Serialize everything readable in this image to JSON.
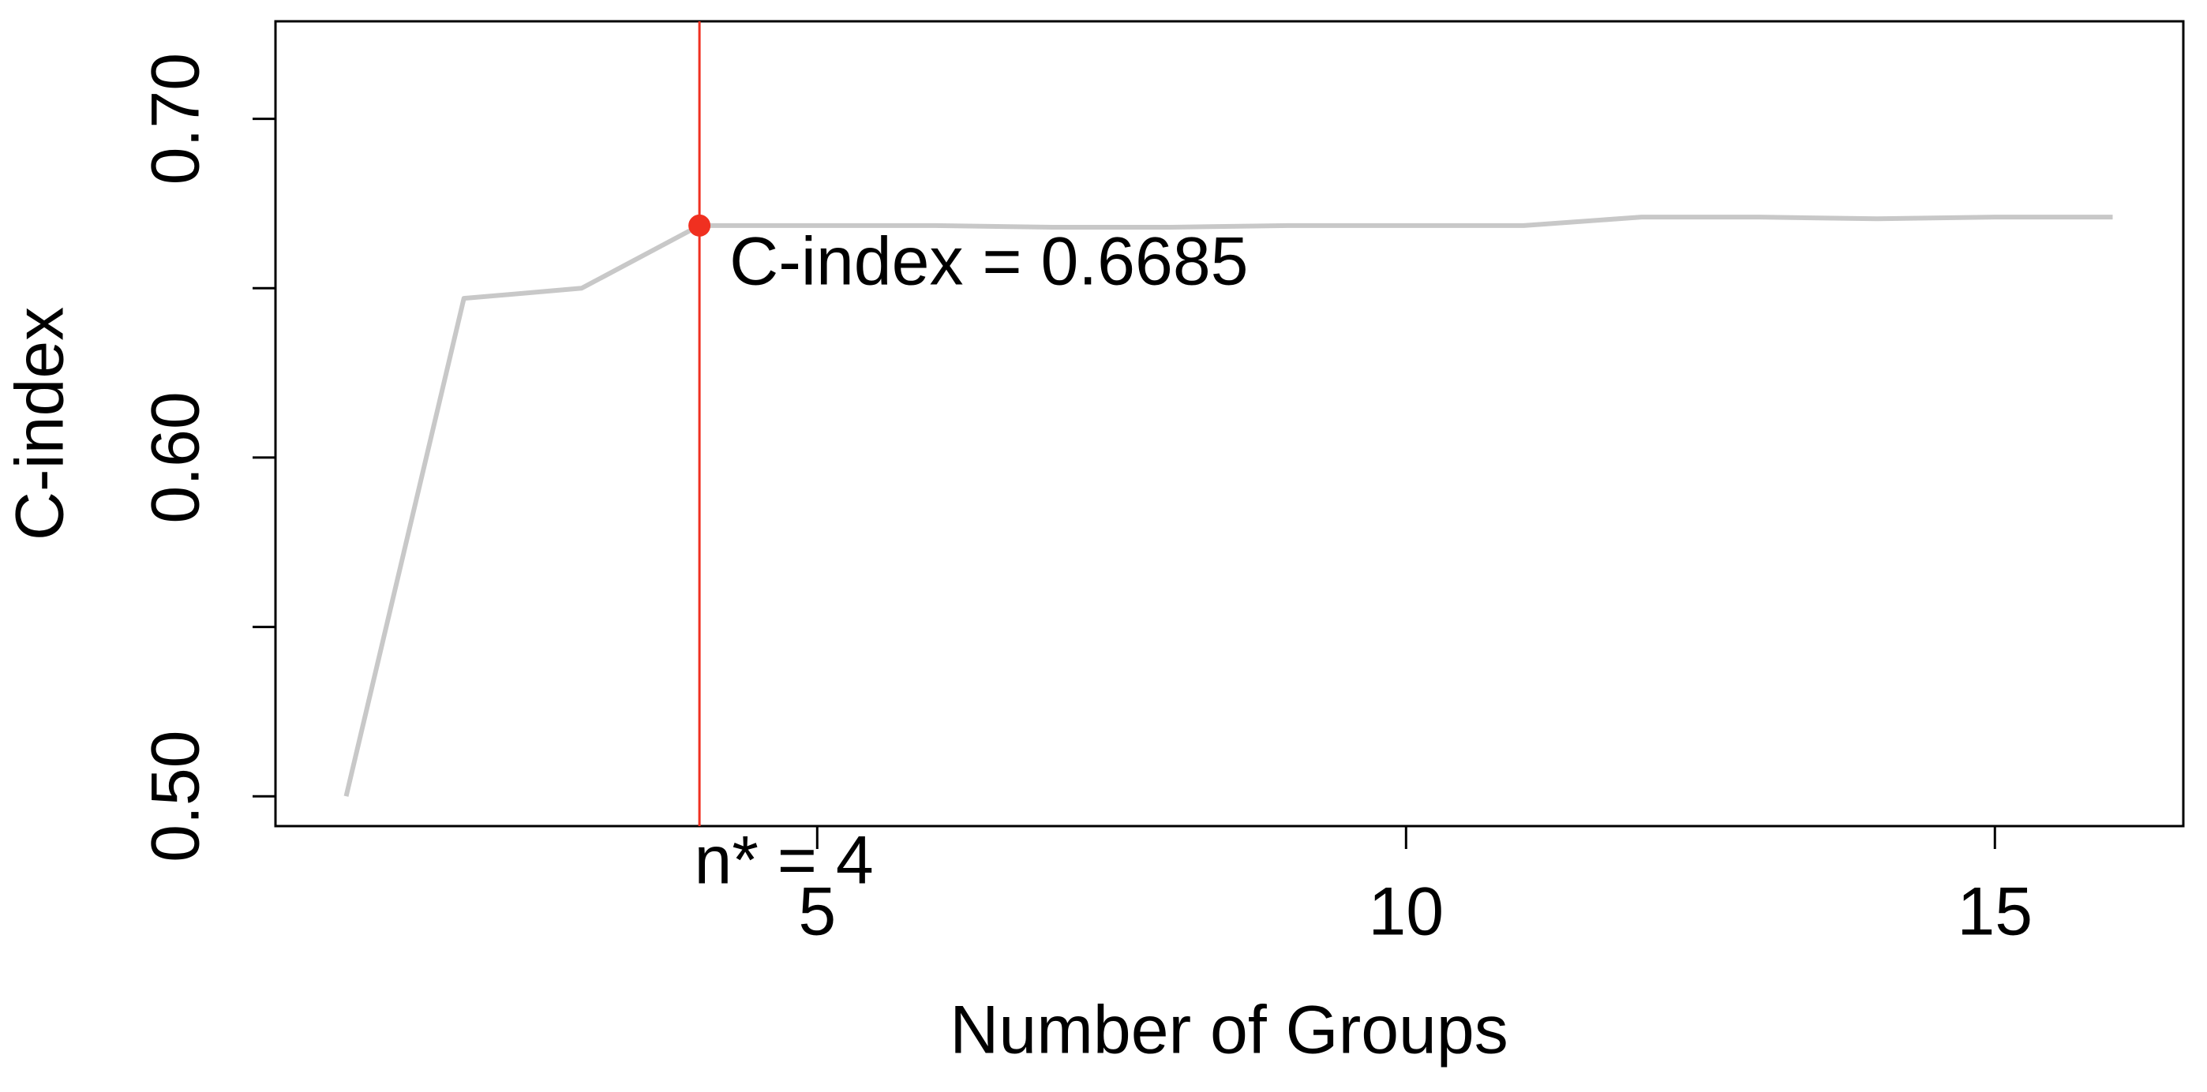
{
  "chart_data": {
    "type": "line",
    "x_label": "Number of Groups",
    "y_label": "C-index",
    "x": [
      1,
      2,
      3,
      4,
      5,
      6,
      7,
      8,
      9,
      10,
      11,
      12,
      13,
      14,
      15,
      16
    ],
    "values": [
      0.5,
      0.647,
      0.65,
      0.6685,
      0.6685,
      0.6685,
      0.668,
      0.668,
      0.6685,
      0.6685,
      0.6685,
      0.671,
      0.671,
      0.6705,
      0.671,
      0.671
    ],
    "color": "#c8c8c8",
    "xlim": [
      0.4,
      16.6
    ],
    "xticks": [
      5,
      10,
      15
    ],
    "ylim": [
      0.4912,
      0.7288
    ],
    "yticks": [
      {
        "value": 0.5,
        "label": "0.50"
      },
      {
        "value": 0.55,
        "label": null
      },
      {
        "value": 0.6,
        "label": "0.60"
      },
      {
        "value": 0.65,
        "label": null
      },
      {
        "value": 0.7,
        "label": "0.70"
      }
    ],
    "highlight": {
      "x": 4,
      "y": 0.6685,
      "color": "#f03020",
      "label": "C-index = 0.6685",
      "x_text": "n* = 4"
    }
  }
}
